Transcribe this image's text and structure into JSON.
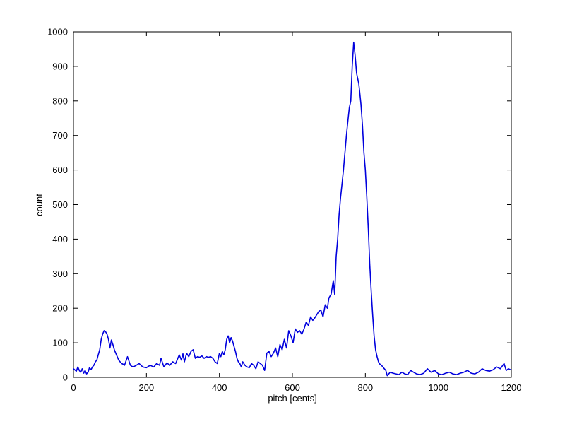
{
  "chart_data": {
    "type": "line",
    "title": "",
    "xlabel": "pitch [cents]",
    "ylabel": "count",
    "xlim": [
      0,
      1200
    ],
    "ylim": [
      0,
      1000
    ],
    "xticks": [
      0,
      200,
      400,
      600,
      800,
      1000,
      1200
    ],
    "yticks": [
      0,
      100,
      200,
      300,
      400,
      500,
      600,
      700,
      800,
      900,
      1000
    ],
    "grid": false,
    "legend": "none",
    "series": [
      {
        "color": "#0000dd",
        "x": [
          0,
          8,
          12,
          16,
          20,
          24,
          28,
          32,
          36,
          40,
          44,
          48,
          52,
          56,
          60,
          64,
          68,
          72,
          76,
          80,
          84,
          88,
          92,
          96,
          100,
          104,
          108,
          112,
          116,
          120,
          124,
          128,
          132,
          136,
          140,
          148,
          156,
          160,
          164,
          172,
          180,
          190,
          200,
          210,
          220,
          228,
          236,
          240,
          248,
          256,
          264,
          272,
          280,
          290,
          296,
          300,
          304,
          310,
          316,
          322,
          328,
          334,
          340,
          346,
          352,
          358,
          364,
          370,
          376,
          382,
          388,
          394,
          400,
          404,
          408,
          412,
          416,
          420,
          424,
          428,
          432,
          436,
          440,
          444,
          448,
          452,
          456,
          460,
          464,
          470,
          476,
          482,
          488,
          494,
          500,
          506,
          512,
          518,
          524,
          530,
          536,
          542,
          548,
          554,
          560,
          566,
          572,
          578,
          584,
          590,
          596,
          602,
          608,
          614,
          620,
          626,
          632,
          638,
          644,
          650,
          656,
          660,
          666,
          672,
          678,
          684,
          690,
          696,
          700,
          706,
          712,
          716,
          720,
          724,
          728,
          732,
          736,
          740,
          744,
          748,
          752,
          756,
          760,
          764,
          768,
          772,
          776,
          780,
          782,
          784,
          788,
          792,
          796,
          800,
          804,
          808,
          812,
          816,
          820,
          824,
          828,
          832,
          836,
          840,
          844,
          848,
          852,
          856,
          860,
          868,
          876,
          884,
          892,
          900,
          908,
          916,
          924,
          932,
          940,
          950,
          960,
          970,
          980,
          990,
          1000,
          1010,
          1020,
          1030,
          1040,
          1050,
          1060,
          1070,
          1080,
          1090,
          1100,
          1110,
          1120,
          1130,
          1140,
          1150,
          1160,
          1170,
          1180,
          1186,
          1192,
          1198
        ],
        "y": [
          25,
          18,
          30,
          20,
          15,
          25,
          12,
          20,
          10,
          15,
          28,
          22,
          30,
          35,
          45,
          50,
          65,
          80,
          110,
          125,
          135,
          132,
          125,
          110,
          85,
          108,
          95,
          80,
          70,
          60,
          50,
          45,
          40,
          38,
          35,
          60,
          35,
          32,
          30,
          35,
          40,
          30,
          28,
          35,
          30,
          40,
          35,
          55,
          30,
          42,
          35,
          45,
          40,
          65,
          50,
          68,
          45,
          70,
          60,
          75,
          80,
          55,
          60,
          58,
          62,
          55,
          60,
          58,
          60,
          55,
          45,
          40,
          70,
          60,
          75,
          65,
          80,
          110,
          120,
          100,
          115,
          105,
          90,
          75,
          55,
          45,
          40,
          30,
          45,
          35,
          30,
          28,
          40,
          35,
          25,
          45,
          40,
          35,
          20,
          70,
          75,
          60,
          70,
          85,
          60,
          95,
          80,
          110,
          85,
          135,
          120,
          100,
          140,
          130,
          135,
          125,
          140,
          160,
          150,
          175,
          165,
          170,
          180,
          190,
          195,
          175,
          210,
          200,
          230,
          240,
          280,
          240,
          350,
          400,
          470,
          520,
          560,
          600,
          650,
          700,
          740,
          780,
          800,
          900,
          970,
          930,
          880,
          860,
          850,
          830,
          790,
          730,
          650,
          600,
          520,
          430,
          330,
          250,
          180,
          120,
          80,
          60,
          45,
          38,
          35,
          30,
          25,
          20,
          5,
          15,
          12,
          10,
          8,
          15,
          10,
          8,
          20,
          15,
          10,
          8,
          12,
          25,
          15,
          20,
          10,
          8,
          12,
          15,
          10,
          8,
          12,
          15,
          20,
          12,
          10,
          15,
          25,
          20,
          18,
          22,
          30,
          25,
          40,
          20,
          25,
          22
        ]
      }
    ]
  }
}
